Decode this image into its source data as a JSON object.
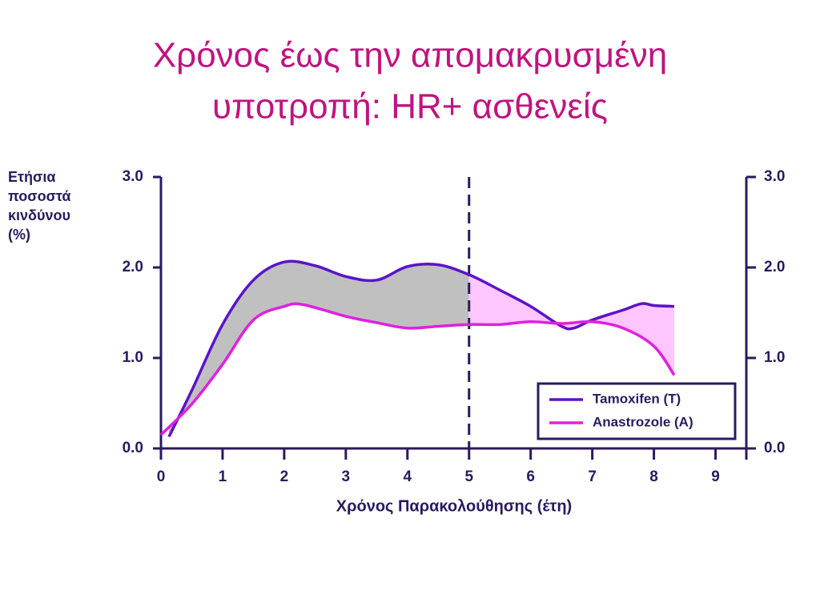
{
  "chart_data": {
    "type": "line",
    "title": [
      "Χρόνος έως την απομακρυσμένη",
      "υποτροπή: HR+ ασθενείς"
    ],
    "ylabel": [
      "Ετήσια",
      "ποσοστά",
      "κινδύνου",
      "(%)"
    ],
    "xlabel": "Χρόνος Παρακολούθησης (έτη)",
    "xlim": [
      0,
      9.5
    ],
    "xticks": [
      0,
      1,
      2,
      3,
      4,
      5,
      6,
      7,
      8,
      9
    ],
    "ylim": [
      0,
      3
    ],
    "yticks": [
      {
        "value": 0,
        "label": "0.0"
      },
      {
        "value": 1,
        "label": "1.0"
      },
      {
        "value": 2,
        "label": "2.0"
      },
      {
        "value": 3,
        "label": "3.0"
      }
    ],
    "y2lim": [
      0,
      3
    ],
    "y2ticks": [
      {
        "value": 0,
        "label": "0.0"
      },
      {
        "value": 1,
        "label": "1.0"
      },
      {
        "value": 2,
        "label": "2.0"
      },
      {
        "value": 3,
        "label": "3.0"
      }
    ],
    "vline": 5,
    "fill_colors": [
      "#c0c0c0",
      "#ffc6ff"
    ],
    "legend": "lower right",
    "series": [
      {
        "name": "Tamoxifen (T)",
        "color": "#5a14c8",
        "x": [
          0.13,
          0.5,
          1,
          1.5,
          2,
          2.5,
          3,
          3.5,
          4,
          4.5,
          5,
          5.5,
          6,
          6.5,
          6.7,
          7,
          7.5,
          7.8,
          8,
          8.33
        ],
        "values": [
          0.13,
          0.64,
          1.37,
          1.86,
          2.06,
          2.02,
          1.9,
          1.86,
          2.01,
          2.03,
          1.92,
          1.75,
          1.57,
          1.35,
          1.33,
          1.42,
          1.53,
          1.6,
          1.58,
          1.57
        ]
      },
      {
        "name": "Anastrozole (A)",
        "color": "#e020e0",
        "x": [
          0,
          0.5,
          1,
          1.5,
          2,
          2.3,
          3,
          3.5,
          4,
          4.5,
          5,
          5.5,
          6,
          6.5,
          7,
          7.5,
          8,
          8.33
        ],
        "values": [
          0.15,
          0.49,
          0.93,
          1.42,
          1.57,
          1.59,
          1.46,
          1.39,
          1.33,
          1.35,
          1.37,
          1.37,
          1.4,
          1.38,
          1.4,
          1.33,
          1.13,
          0.81
        ]
      }
    ]
  }
}
